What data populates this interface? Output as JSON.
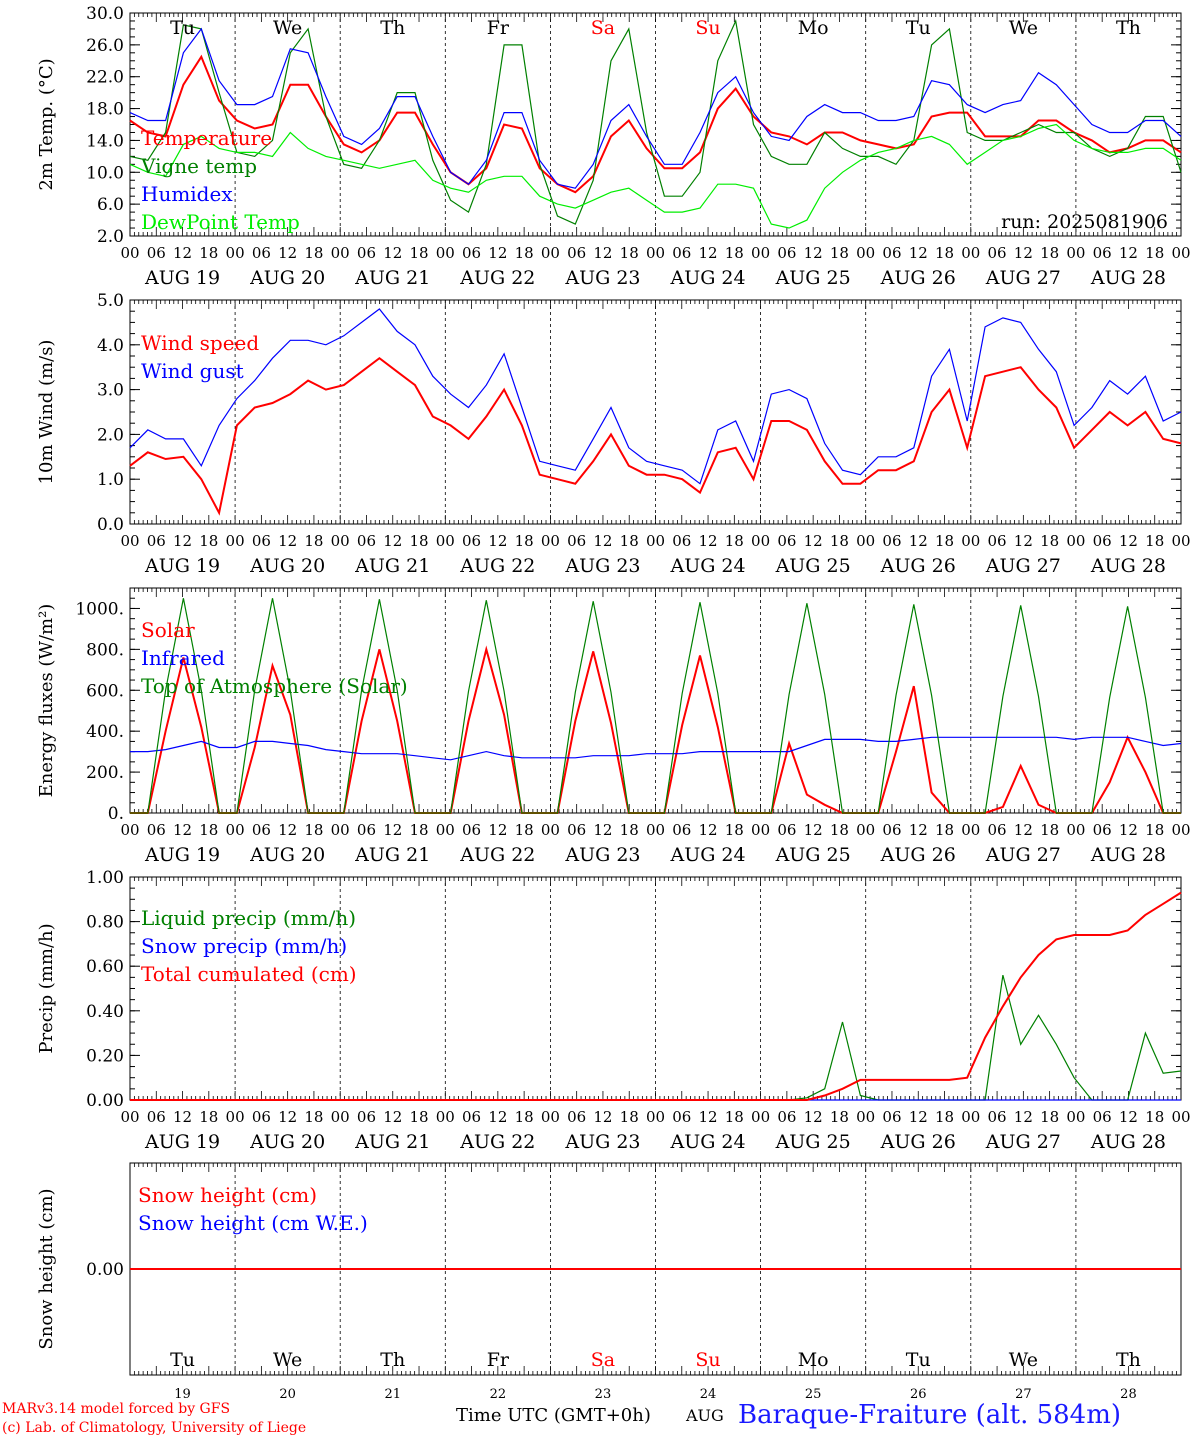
{
  "chart_data": {
    "station_title": "Baraque-Fraiture (alt. 584m)",
    "credits": [
      "MARv3.14 model forced by GFS",
      "(c) Lab. of Climatology, University of Liege"
    ],
    "xlabel": "Time UTC (GMT+0h)",
    "month_label": "AUG",
    "hour_ticks": [
      "00",
      "06",
      "12",
      "18"
    ],
    "date_labels": [
      "AUG 19",
      "AUG 20",
      "AUG 21",
      "AUG 22",
      "AUG 23",
      "AUG 24",
      "AUG 25",
      "AUG 26",
      "AUG 27",
      "AUG 28"
    ],
    "day_names": [
      "Tu",
      "We",
      "Th",
      "Fr",
      "Sa",
      "Su",
      "Mo",
      "Tu",
      "We",
      "Th"
    ],
    "day_name_colors": [
      "#000000",
      "#000000",
      "#000000",
      "#000000",
      "#ff0000",
      "#ff0000",
      "#000000",
      "#000000",
      "#000000",
      "#000000"
    ],
    "day_numbers": [
      "19",
      "20",
      "21",
      "22",
      "23",
      "24",
      "25",
      "26",
      "27",
      "28"
    ],
    "panels": [
      {
        "id": "temp",
        "type": "line",
        "ylabel": "2m Temp. (°C)",
        "ylim": [
          2,
          30
        ],
        "yticks": [
          "2.0",
          "6.0",
          "10.0",
          "14.0",
          "18.0",
          "22.0",
          "26.0",
          "30.0"
        ],
        "annotation": "run: 2025081906",
        "series": [
          {
            "name": "Temperature",
            "color": "#ff0000",
            "values": [
              16.5,
              15,
              14.5,
              21,
              24.5,
              19,
              16.5,
              15.5,
              16,
              21,
              21,
              17,
              13.5,
              12.5,
              14,
              17.5,
              17.5,
              13.5,
              10,
              8.5,
              10.5,
              16,
              15.5,
              10.5,
              8.5,
              7.5,
              9.5,
              14.5,
              16.5,
              13,
              10.5,
              10.5,
              12.5,
              18,
              20.5,
              17,
              15,
              14.5,
              13.5,
              15,
              15,
              14,
              13.5,
              13,
              13.5,
              17,
              17.5,
              17.5,
              14.5,
              14.5,
              14.5,
              16.5,
              16.5,
              15,
              14,
              12.5,
              13,
              14,
              14,
              12.5
            ]
          },
          {
            "name": "Vigne temp",
            "color": "#008000",
            "values": [
              12,
              11.5,
              15,
              28.5,
              28,
              20,
              12.5,
              12,
              14,
              25,
              28,
              17,
              11,
              10.5,
              14,
              20,
              20,
              11.5,
              6.5,
              5,
              11,
              26,
              26,
              11,
              4.5,
              3.5,
              9,
              24,
              28,
              15,
              7,
              7,
              10,
              24,
              29,
              16,
              12,
              11,
              11,
              15,
              13,
              12,
              12,
              11,
              14,
              26,
              28,
              15,
              14,
              14,
              15,
              16,
              15,
              15,
              13,
              12,
              13,
              17,
              17,
              10
            ]
          },
          {
            "name": "Humidex",
            "color": "#0000ff",
            "values": [
              17.5,
              16.5,
              16.5,
              25,
              28,
              21.5,
              18.5,
              18.5,
              19.5,
              25.5,
              25,
              19.5,
              14.5,
              13.5,
              15.5,
              19.5,
              19.5,
              14.5,
              10,
              8.5,
              11.5,
              17.5,
              17.5,
              11.5,
              8.5,
              8,
              11,
              16.5,
              18.5,
              14.5,
              11,
              11,
              15,
              20,
              22,
              17.5,
              14.5,
              14,
              17,
              18.5,
              17.5,
              17.5,
              16.5,
              16.5,
              17,
              21.5,
              21,
              18.5,
              17.5,
              18.5,
              19,
              22.5,
              21,
              18.5,
              16,
              15,
              15,
              16.5,
              16.5,
              14.5
            ]
          },
          {
            "name": "DewPoint Temp",
            "color": "#00ee00",
            "values": [
              11,
              10,
              9.5,
              13.5,
              14.5,
              13,
              12.5,
              12.5,
              12,
              15,
              13,
              12,
              11.5,
              11,
              10.5,
              11,
              11.5,
              9,
              8,
              7.5,
              9,
              9.5,
              9.5,
              7,
              6,
              5.5,
              6.5,
              7.5,
              8,
              6.5,
              5,
              5,
              5.5,
              8.5,
              8.5,
              8,
              3.5,
              3,
              4,
              8,
              10,
              11.5,
              12.5,
              13,
              14,
              14.5,
              13.5,
              11,
              12.5,
              14,
              14.5,
              15.5,
              16,
              14,
              13,
              12.5,
              12.5,
              13,
              13,
              11.5
            ]
          }
        ]
      },
      {
        "id": "wind",
        "type": "line",
        "ylabel": "10m Wind (m/s)",
        "ylim": [
          0,
          5
        ],
        "yticks": [
          "0.0",
          "1.0",
          "2.0",
          "3.0",
          "4.0",
          "5.0"
        ],
        "series": [
          {
            "name": "Wind speed",
            "color": "#ff0000",
            "values": [
              1.3,
              1.6,
              1.45,
              1.5,
              1.0,
              0.25,
              2.2,
              2.6,
              2.7,
              2.9,
              3.2,
              3.0,
              3.1,
              3.4,
              3.7,
              3.4,
              3.1,
              2.4,
              2.2,
              1.9,
              2.4,
              3.0,
              2.2,
              1.1,
              1.0,
              0.9,
              1.4,
              2.0,
              1.3,
              1.1,
              1.1,
              1.0,
              0.7,
              1.6,
              1.7,
              1.0,
              2.3,
              2.3,
              2.1,
              1.4,
              0.9,
              0.9,
              1.2,
              1.2,
              1.4,
              2.5,
              3.0,
              1.7,
              3.3,
              3.4,
              3.5,
              3.0,
              2.6,
              1.7,
              2.1,
              2.5,
              2.2,
              2.5,
              1.9,
              1.8
            ]
          },
          {
            "name": "Wind gust",
            "color": "#0000ff",
            "values": [
              1.7,
              2.1,
              1.9,
              1.9,
              1.3,
              2.2,
              2.8,
              3.2,
              3.7,
              4.1,
              4.1,
              4.0,
              4.2,
              4.5,
              4.8,
              4.3,
              4.0,
              3.3,
              2.9,
              2.6,
              3.1,
              3.8,
              2.6,
              1.4,
              1.3,
              1.2,
              1.9,
              2.6,
              1.7,
              1.4,
              1.3,
              1.2,
              0.9,
              2.1,
              2.3,
              1.4,
              2.9,
              3.0,
              2.8,
              1.8,
              1.2,
              1.1,
              1.5,
              1.5,
              1.7,
              3.3,
              3.9,
              2.3,
              4.4,
              4.6,
              4.5,
              3.9,
              3.4,
              2.2,
              2.6,
              3.2,
              2.9,
              3.3,
              2.3,
              2.5
            ]
          }
        ]
      },
      {
        "id": "energy",
        "type": "line",
        "ylabel": "Energy fluxes (W/m²)",
        "ylim": [
          0,
          1100
        ],
        "yticks": [
          "0.",
          "200.",
          "400.",
          "600.",
          "800.",
          "1000."
        ],
        "ytick_values": [
          0,
          200,
          400,
          600,
          800,
          1000
        ],
        "series": [
          {
            "name": "Solar",
            "color": "#ff0000",
            "values": [
              0,
              0,
              400,
              760,
              420,
              0,
              0,
              320,
              720,
              480,
              0,
              0,
              0,
              450,
              800,
              450,
              0,
              0,
              0,
              450,
              800,
              480,
              0,
              0,
              0,
              450,
              790,
              440,
              0,
              0,
              0,
              430,
              770,
              420,
              0,
              0,
              0,
              340,
              90,
              40,
              0,
              0,
              0,
              300,
              620,
              100,
              0,
              0,
              0,
              30,
              230,
              40,
              0,
              0,
              0,
              150,
              370,
              200,
              0,
              0
            ]
          },
          {
            "name": "Infrared",
            "color": "#0000ff",
            "values": [
              300,
              300,
              310,
              330,
              350,
              320,
              320,
              350,
              350,
              340,
              330,
              310,
              300,
              290,
              290,
              290,
              280,
              270,
              260,
              280,
              300,
              280,
              270,
              270,
              270,
              270,
              280,
              280,
              280,
              290,
              290,
              290,
              300,
              300,
              300,
              300,
              300,
              300,
              330,
              360,
              360,
              360,
              350,
              350,
              360,
              370,
              370,
              370,
              370,
              370,
              370,
              370,
              370,
              360,
              370,
              370,
              370,
              350,
              330,
              340
            ]
          },
          {
            "name": "Top of Atmosphere (Solar)",
            "color": "#008000",
            "values": [
              0,
              0,
              600,
              1050,
              600,
              0,
              0,
              600,
              1050,
              600,
              0,
              0,
              0,
              600,
              1045,
              600,
              0,
              0,
              0,
              595,
              1040,
              595,
              0,
              0,
              0,
              590,
              1035,
              590,
              0,
              0,
              0,
              585,
              1030,
              585,
              0,
              0,
              0,
              580,
              1025,
              580,
              0,
              0,
              0,
              575,
              1020,
              575,
              0,
              0,
              0,
              570,
              1015,
              570,
              0,
              0,
              0,
              565,
              1010,
              565,
              0,
              0
            ]
          }
        ]
      },
      {
        "id": "precip",
        "type": "line",
        "ylabel": "Precip (mm/h)",
        "ylim": [
          0,
          1
        ],
        "yticks": [
          "0.00",
          "0.20",
          "0.40",
          "0.60",
          "0.80",
          "1.00"
        ],
        "series": [
          {
            "name": "Liquid precip (mm/h)",
            "color": "#008000",
            "values": [
              0,
              0,
              0,
              0,
              0,
              0,
              0,
              0,
              0,
              0,
              0,
              0,
              0,
              0,
              0,
              0,
              0,
              0,
              0,
              0,
              0,
              0,
              0,
              0,
              0,
              0,
              0,
              0,
              0,
              0,
              0,
              0,
              0,
              0,
              0,
              0,
              0,
              0,
              0.01,
              0.05,
              0.35,
              0.02,
              0,
              0,
              0,
              0,
              0,
              0,
              0,
              0.56,
              0.25,
              0.38,
              0.25,
              0.1,
              0,
              0,
              0,
              0.3,
              0.12,
              0.13
            ]
          },
          {
            "name": "Snow precip (mm/h)",
            "color": "#0000ff",
            "values": [
              0,
              0,
              0,
              0,
              0,
              0,
              0,
              0,
              0,
              0,
              0,
              0,
              0,
              0,
              0,
              0,
              0,
              0,
              0,
              0,
              0,
              0,
              0,
              0,
              0,
              0,
              0,
              0,
              0,
              0,
              0,
              0,
              0,
              0,
              0,
              0,
              0,
              0,
              0,
              0,
              0,
              0,
              0,
              0,
              0,
              0,
              0,
              0,
              0,
              0,
              0,
              0,
              0,
              0,
              0,
              0,
              0,
              0,
              0,
              0
            ]
          },
          {
            "name": "Total cumulated (cm)",
            "color": "#ff0000",
            "values": [
              0,
              0,
              0,
              0,
              0,
              0,
              0,
              0,
              0,
              0,
              0,
              0,
              0,
              0,
              0,
              0,
              0,
              0,
              0,
              0,
              0,
              0,
              0,
              0,
              0,
              0,
              0,
              0,
              0,
              0,
              0,
              0,
              0,
              0,
              0,
              0,
              0,
              0,
              0,
              0.02,
              0.05,
              0.09,
              0.09,
              0.09,
              0.09,
              0.09,
              0.09,
              0.1,
              0.28,
              0.42,
              0.55,
              0.65,
              0.72,
              0.74,
              0.74,
              0.74,
              0.76,
              0.83,
              0.88,
              0.93
            ]
          }
        ]
      },
      {
        "id": "snow",
        "type": "line",
        "ylabel": "Snow height (cm)",
        "ylim": [
          -1,
          1
        ],
        "yticks": [
          "0.00"
        ],
        "ytick_values": [
          0
        ],
        "series": [
          {
            "name": "Snow height (cm)",
            "color": "#ff0000",
            "values": [
              0,
              0
            ]
          },
          {
            "name": "Snow height (cm W.E.)",
            "color": "#0000ff",
            "values": []
          }
        ]
      }
    ]
  }
}
